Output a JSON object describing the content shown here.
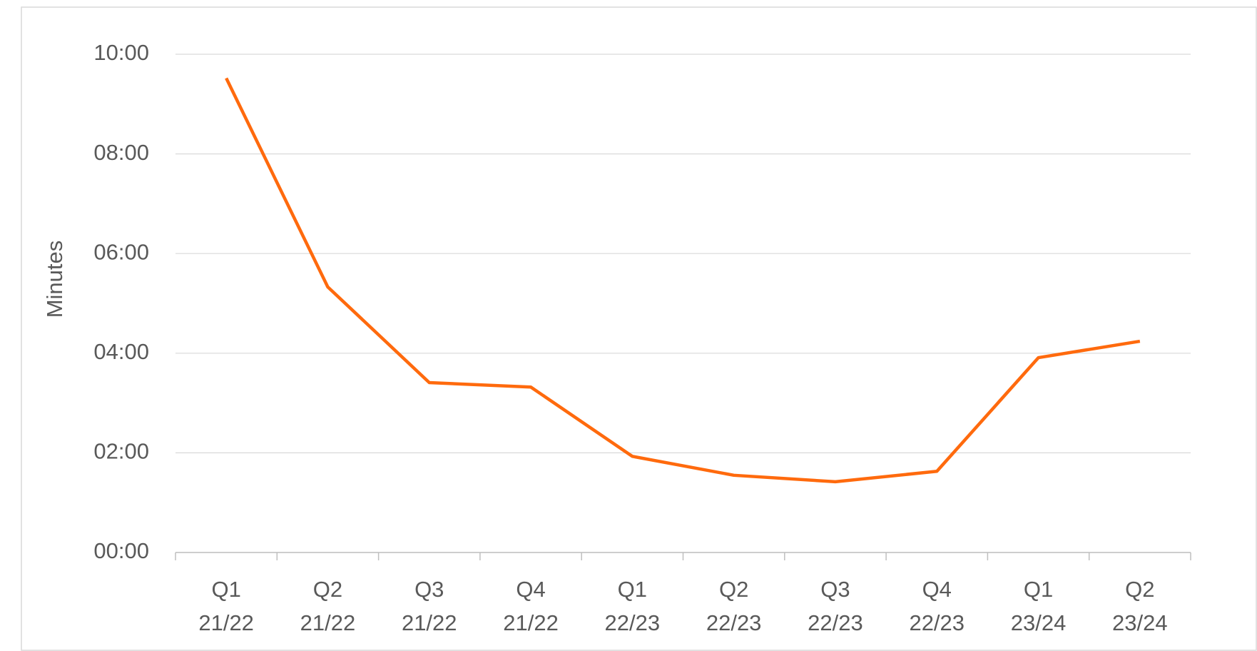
{
  "chart_data": {
    "type": "line",
    "y_label": "Minutes",
    "categories": [
      "Q1\n21/22",
      "Q2\n21/22",
      "Q3\n21/22",
      "Q4\n21/22",
      "Q1\n22/23",
      "Q2\n22/23",
      "Q3\n22/23",
      "Q4\n22/23",
      "Q1\n23/24",
      "Q2\n23/24"
    ],
    "values": [
      9.52,
      5.33,
      3.41,
      3.32,
      1.93,
      1.55,
      1.42,
      1.63,
      3.91,
      4.24
    ],
    "color": "#ff6a0d",
    "ylim": [
      0,
      10
    ],
    "yticks": [
      {
        "value": 0,
        "label": "00:00"
      },
      {
        "value": 2,
        "label": "02:00"
      },
      {
        "value": 4,
        "label": "04:00"
      },
      {
        "value": 6,
        "label": "06:00"
      },
      {
        "value": 8,
        "label": "08:00"
      },
      {
        "value": 10,
        "label": "10:00"
      }
    ],
    "grid": true
  }
}
